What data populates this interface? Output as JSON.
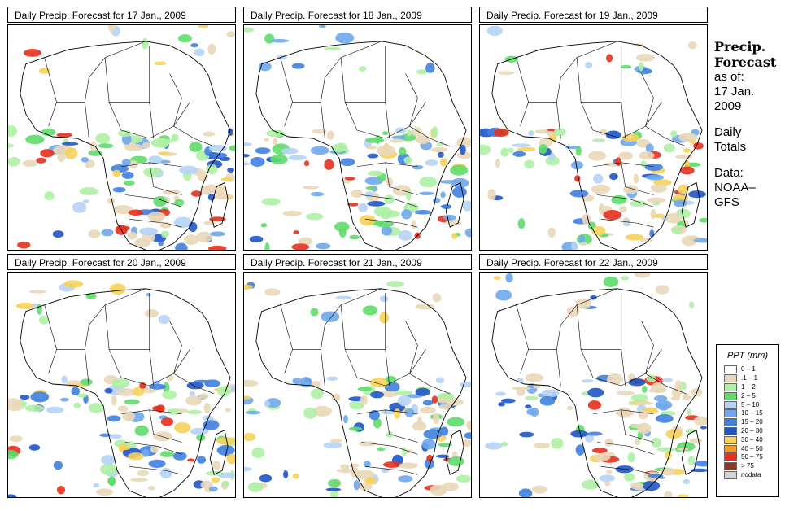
{
  "panels": [
    {
      "title": "Daily Precip. Forecast for  17 Jan., 2009",
      "seed": 1
    },
    {
      "title": "Daily Precip. Forecast for  18 Jan., 2009",
      "seed": 2
    },
    {
      "title": "Daily Precip. Forecast for  19 Jan., 2009",
      "seed": 3
    },
    {
      "title": "Daily Precip. Forecast for  20 Jan., 2009",
      "seed": 4
    },
    {
      "title": "Daily Precip. Forecast for  21 Jan., 2009",
      "seed": 5
    },
    {
      "title": "Daily Precip. Forecast for  22 Jan., 2009",
      "seed": 6
    }
  ],
  "sidebar": {
    "title_line1": "Precip.",
    "title_line2": "Forecast",
    "asof_line1": "as of:",
    "asof_line2": "17 Jan.",
    "asof_line3": "2009",
    "totals_line1": "Daily",
    "totals_line2": "Totals",
    "data_line1": "Data:",
    "data_line2": "NOAA–",
    "data_line3": "GFS"
  },
  "legend": {
    "title": "PPT (mm)",
    "items": [
      {
        "label": "0 – 1",
        "color": "#ffffff"
      },
      {
        "label": ".1 – 1",
        "color": "#e9d8b9"
      },
      {
        "label": "1 – 2",
        "color": "#aef0a5"
      },
      {
        "label": "2 – 5",
        "color": "#5fdc6a"
      },
      {
        "label": "5 – 10",
        "color": "#b6d4f5"
      },
      {
        "label": "10 – 15",
        "color": "#6fa8ec"
      },
      {
        "label": "15 – 20",
        "color": "#3f7fe0"
      },
      {
        "label": "20 – 30",
        "color": "#1f55c8"
      },
      {
        "label": "30 – 40",
        "color": "#f6d25a"
      },
      {
        "label": "40 – 50",
        "color": "#f39a2a"
      },
      {
        "label": "50 – 75",
        "color": "#e5301d"
      },
      {
        "label": "> 75",
        "color": "#8b3a28"
      },
      {
        "label": "nodata",
        "color": "#d4d4d4"
      }
    ]
  }
}
